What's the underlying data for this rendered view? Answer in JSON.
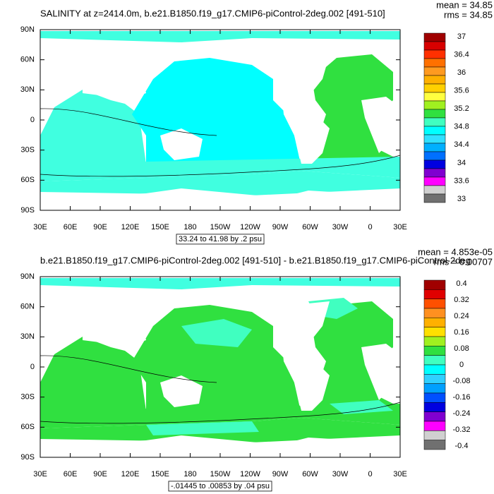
{
  "panels": [
    {
      "title": "SALINITY at z=2414.0m, b.e21.B1850.f19_g17.CMIP6-piControl-2deg.002 [491-510]",
      "mean": "mean = 34.85",
      "rms": "rms = 34.85",
      "lat_labels": [
        "90N",
        "60N",
        "30N",
        "0",
        "30S",
        "60S",
        "90S"
      ],
      "lon_labels": [
        "30E",
        "60E",
        "90E",
        "120E",
        "150E",
        "180",
        "150W",
        "120W",
        "90W",
        "60W",
        "30W",
        "0",
        "30E"
      ],
      "range_label": "33.24 to 41.98 by .2 psu",
      "colorbar": {
        "colors": [
          "#a00000",
          "#d80000",
          "#ff3000",
          "#ff7000",
          "#ff9a20",
          "#ffb000",
          "#ffd000",
          "#ffff40",
          "#a0f020",
          "#30e040",
          "#40ffc0",
          "#00ffff",
          "#30e0ff",
          "#00b0ff",
          "#0070ff",
          "#0000e0",
          "#8000d0",
          "#ff00ff",
          "#d0d0d0",
          "#707070"
        ],
        "labels": [
          "37",
          "36.4",
          "36",
          "35.6",
          "35.2",
          "34.8",
          "34.4",
          "34",
          "33.6",
          "33"
        ]
      },
      "ocean_colors": {
        "pacific": "#00ffff",
        "indian": "#40ffe0",
        "atlantic": "#30e040",
        "southern": "#40ffe0",
        "arctic": "#40ffe0"
      }
    },
    {
      "title": "b.e21.B1850.f19_g17.CMIP6-piControl-2deg.002 [491-510] - b.e21.B1850.f19_g17.CMIP6-piControl-2deg",
      "mean": "mean = 4.853e-05",
      "rms": "rms = 0.00707",
      "lat_labels": [
        "90N",
        "60N",
        "30N",
        "0",
        "30S",
        "60S",
        "90S"
      ],
      "lon_labels": [
        "30E",
        "60E",
        "90E",
        "120E",
        "150E",
        "180",
        "150W",
        "120W",
        "90W",
        "60W",
        "30W",
        "0",
        "30E"
      ],
      "range_label": "-.01445 to .00853 by .04 psu",
      "colorbar": {
        "colors": [
          "#a00000",
          "#e00000",
          "#ff5000",
          "#ff9020",
          "#ffb000",
          "#ffe000",
          "#a0f020",
          "#30e040",
          "#40ffc0",
          "#00ffff",
          "#30d0ff",
          "#00a0ff",
          "#0050ff",
          "#0000e0",
          "#8000d0",
          "#ff00ff",
          "#d0d0d0",
          "#707070"
        ],
        "labels": [
          "0.4",
          "0.32",
          "0.24",
          "0.16",
          "0.08",
          "0",
          "-0.08",
          "-0.16",
          "-0.24",
          "-0.32",
          "-0.4"
        ]
      },
      "ocean_colors": {
        "pacific": "#30e040",
        "indian": "#30e040",
        "atlantic": "#30e040",
        "southern": "#30e040",
        "arctic": "#40ffe0"
      }
    }
  ]
}
